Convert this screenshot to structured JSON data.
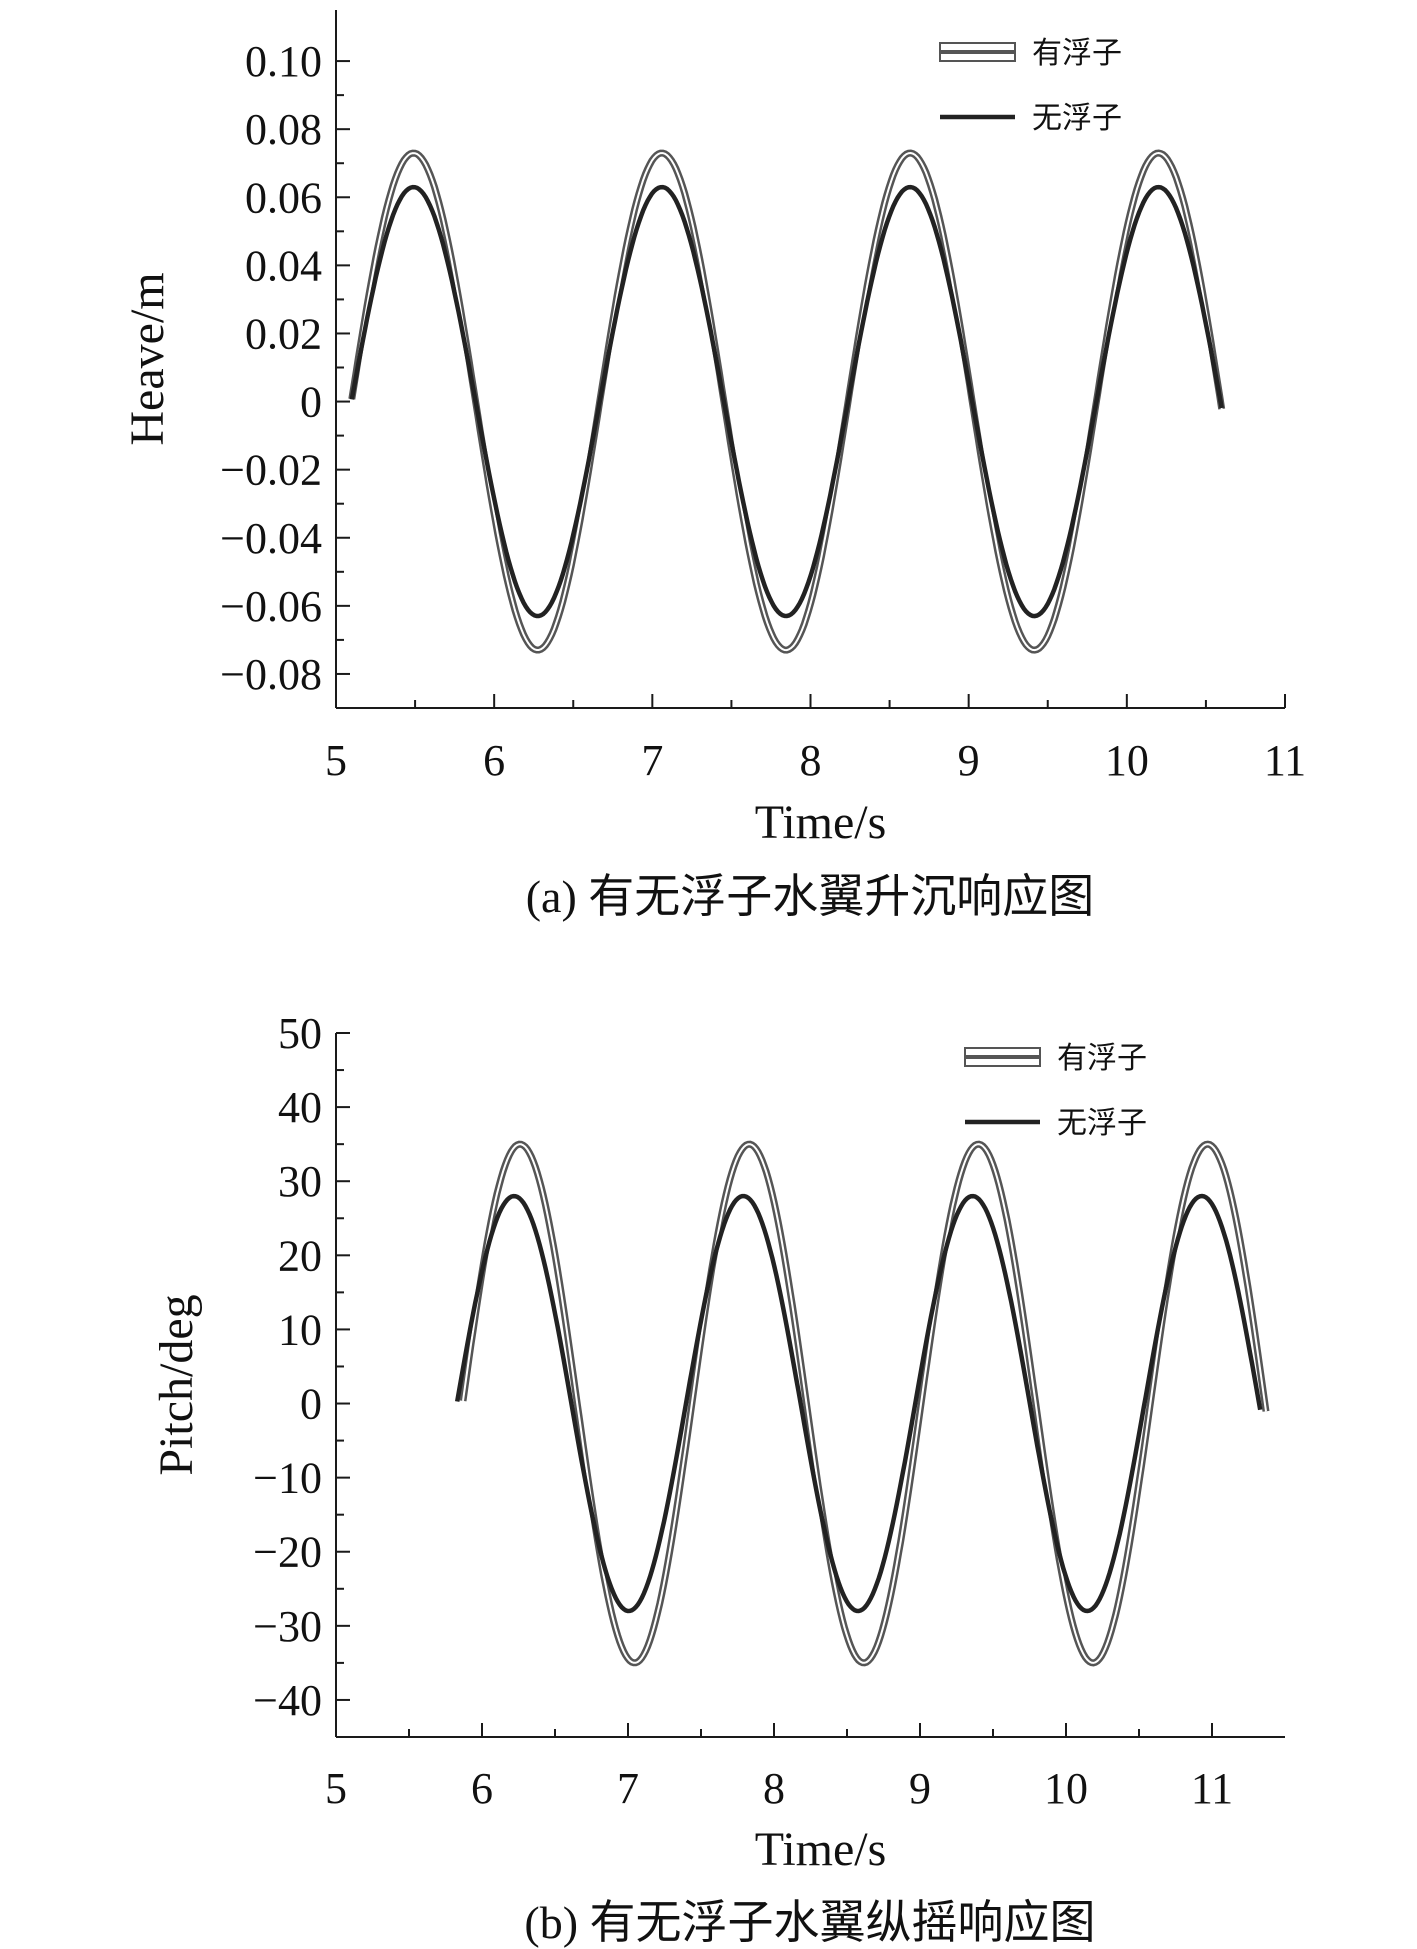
{
  "chart_data": [
    {
      "type": "line",
      "caption": "(a) 有无浮子水翼升沉响应图",
      "xlabel": "Time/s",
      "ylabel": "Heave/m",
      "xlim": [
        5,
        11
      ],
      "ylim": [
        -0.09,
        0.115
      ],
      "xticks": [
        5,
        6,
        7,
        8,
        9,
        10,
        11
      ],
      "xtick_labels": [
        "5",
        "6",
        "7",
        "8",
        "9",
        "10",
        "11"
      ],
      "yticks": [
        0.1,
        0.08,
        0.06,
        0.04,
        0.02,
        0,
        -0.02,
        -0.04,
        -0.06,
        -0.08
      ],
      "ytick_labels": [
        "0.10",
        "0.08",
        "0.06",
        "0.04",
        "0.02",
        "0",
        "−0.02",
        "−0.04",
        "−0.06",
        "−0.08"
      ],
      "legend_position": "top-right",
      "series": [
        {
          "name": "有浮子",
          "color": "#555555",
          "style": "double",
          "x_range": [
            5.1,
            10.6
          ],
          "amplitude": 0.073,
          "period": 1.57,
          "peaks_x": [
            5.49,
            7.06,
            8.63,
            10.2
          ],
          "troughs_x": [
            6.28,
            7.85,
            9.42
          ]
        },
        {
          "name": "无浮子",
          "color": "#222222",
          "style": "solid",
          "x_range": [
            5.1,
            10.6
          ],
          "amplitude": 0.063,
          "period": 1.57,
          "peaks_x": [
            5.49,
            7.06,
            8.63,
            10.2
          ],
          "troughs_x": [
            6.28,
            7.85,
            9.42
          ]
        }
      ]
    },
    {
      "type": "line",
      "caption": "(b) 有无浮子水翼纵摇响应图",
      "xlabel": "Time/s",
      "ylabel": "Pitch/deg",
      "xlim": [
        5,
        11.5
      ],
      "ylim": [
        -45,
        50
      ],
      "xticks": [
        5,
        6,
        7,
        8,
        9,
        10,
        11
      ],
      "xtick_labels": [
        "5",
        "6",
        "7",
        "8",
        "9",
        "10",
        "11"
      ],
      "yticks": [
        50,
        40,
        30,
        20,
        10,
        0,
        -10,
        -20,
        -30,
        -40
      ],
      "ytick_labels": [
        "50",
        "40",
        "30",
        "20",
        "10",
        "0",
        "−10",
        "−20",
        "−30",
        "−40"
      ],
      "legend_position": "top-right",
      "series": [
        {
          "name": "有浮子",
          "color": "#555555",
          "style": "double",
          "x_range": [
            5.87,
            11.37
          ],
          "amplitude": 35,
          "period": 1.57,
          "peaks_x": [
            6.26,
            7.83,
            9.4,
            10.97
          ],
          "troughs_x": [
            7.05,
            8.62,
            10.19
          ]
        },
        {
          "name": "无浮子",
          "color": "#222222",
          "style": "solid",
          "x_range": [
            5.83,
            11.33
          ],
          "amplitude": 28,
          "period": 1.57,
          "peaks_x": [
            6.22,
            7.79,
            9.36,
            10.93
          ],
          "troughs_x": [
            7.01,
            8.58,
            10.15
          ]
        }
      ]
    }
  ]
}
